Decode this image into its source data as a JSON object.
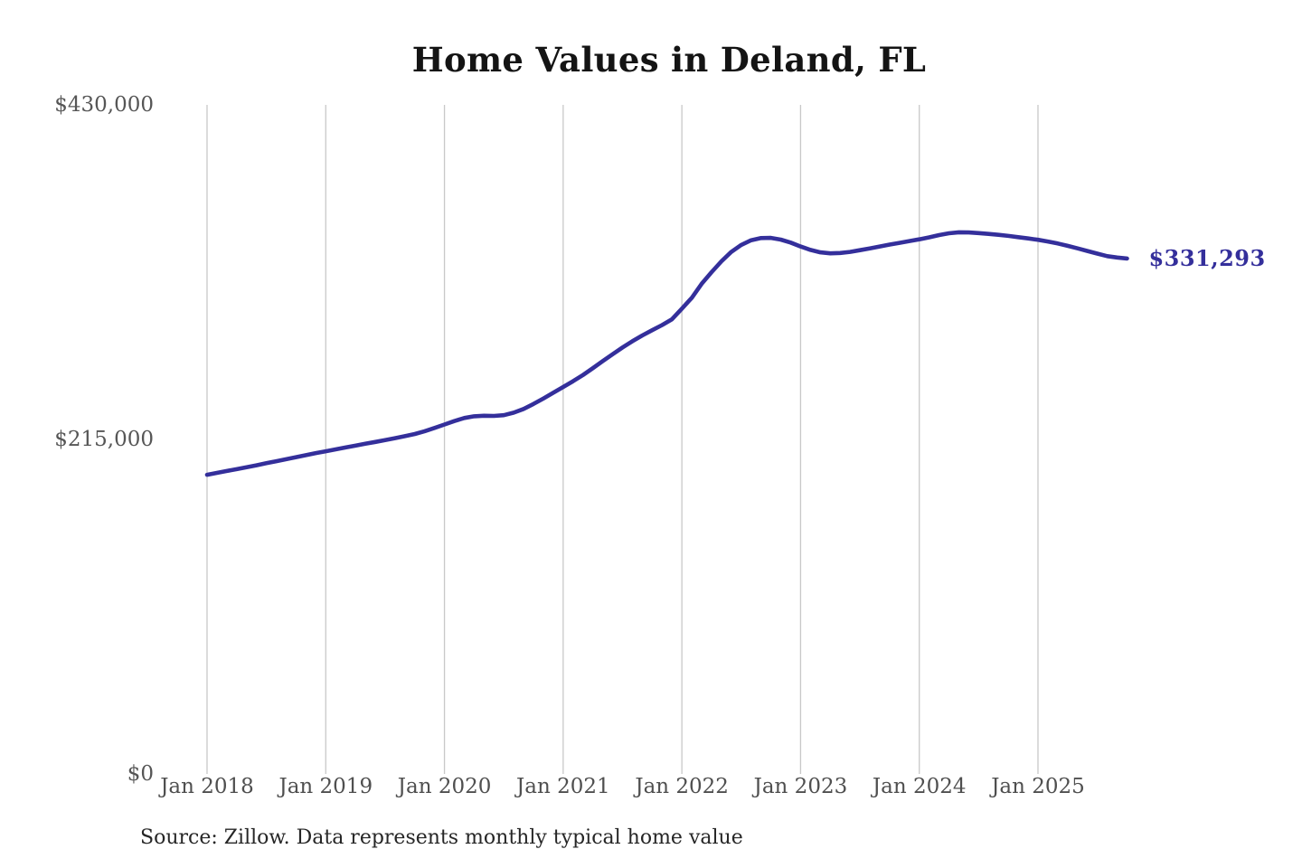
{
  "title": "Home Values in Deland, FL",
  "source_note": "Source: Zillow. Data represents monthly typical home value",
  "end_label": "$331,293",
  "colors": {
    "line": "#342f9b",
    "gridline": "#c8c8c8",
    "end_label_text": "#342f9b",
    "axis_text": "#4f4f4f",
    "background": "#ffffff"
  },
  "chart_data": {
    "type": "line",
    "title": "Home Values in Deland, FL",
    "xlabel": "",
    "ylabel": "",
    "grid": "vertical-yearly",
    "legend": "none",
    "ylim": [
      0,
      430000
    ],
    "y_ticks": [
      0,
      215000,
      430000
    ],
    "y_tick_labels": [
      "$0",
      "$215,000",
      "$430,000"
    ],
    "x_tick_labels": [
      "Jan 2018",
      "Jan 2019",
      "Jan 2020",
      "Jan 2021",
      "Jan 2022",
      "Jan 2023",
      "Jan 2024",
      "Jan 2025"
    ],
    "x_range": [
      "Jan 2018",
      "Oct 2025"
    ],
    "x_interval": "monthly",
    "end_value": 331293,
    "series": [
      {
        "name": "Typical home value",
        "monthly_values": [
          192300,
          193500,
          194700,
          195900,
          197100,
          198400,
          199700,
          201000,
          202300,
          203600,
          204900,
          206200,
          207400,
          208600,
          209800,
          211000,
          212200,
          213400,
          214600,
          215800,
          217100,
          218500,
          220300,
          222400,
          224600,
          226800,
          228800,
          229900,
          230200,
          230100,
          230600,
          232200,
          234600,
          237800,
          241300,
          245000,
          248700,
          252400,
          256400,
          260800,
          265300,
          269800,
          274100,
          278100,
          281800,
          285200,
          288500,
          292200,
          299000,
          306000,
          315000,
          322500,
          329500,
          335500,
          340000,
          343000,
          344400,
          344500,
          343400,
          341500,
          339000,
          336800,
          335200,
          334600,
          334800,
          335500,
          336600,
          337800,
          339000,
          340200,
          341300,
          342500,
          343600,
          344900,
          346300,
          347500,
          348100,
          348000,
          347600,
          347100,
          346500,
          345800,
          345000,
          344200,
          343300,
          342200,
          340900,
          339400,
          337800,
          336100,
          334400,
          332800,
          331900,
          331293
        ]
      }
    ]
  }
}
